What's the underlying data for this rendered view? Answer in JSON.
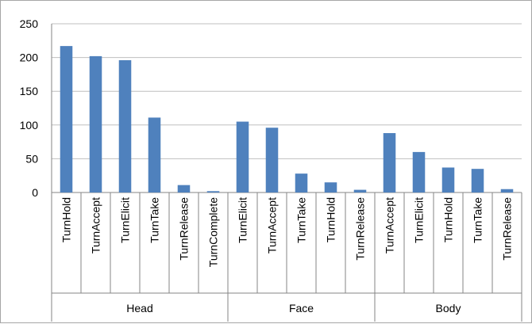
{
  "chart_data": {
    "type": "bar",
    "title": "",
    "xlabel": "",
    "ylabel": "",
    "ylim": [
      0,
      250
    ],
    "yticks": [
      0,
      50,
      100,
      150,
      200,
      250
    ],
    "grid": true,
    "legend": "none",
    "bar_color": "#4f81bd",
    "groups": [
      {
        "name": "Head",
        "categories": [
          "TurnHold",
          "TurnAccept",
          "TurnElicit",
          "TurnTake",
          "TurnRelease",
          "TurnComplete"
        ],
        "values": [
          217,
          202,
          196,
          111,
          11,
          2
        ]
      },
      {
        "name": "Face",
        "categories": [
          "TurnElicit",
          "TurnAccept",
          "TurnTake",
          "TurnHold",
          "TurnRelease"
        ],
        "values": [
          105,
          96,
          28,
          15,
          4
        ]
      },
      {
        "name": "Body",
        "categories": [
          "TurnAccept",
          "TurnElicit",
          "TurnHold",
          "TurnTake",
          "TurnRelease"
        ],
        "values": [
          88,
          60,
          37,
          35,
          5
        ]
      }
    ]
  }
}
